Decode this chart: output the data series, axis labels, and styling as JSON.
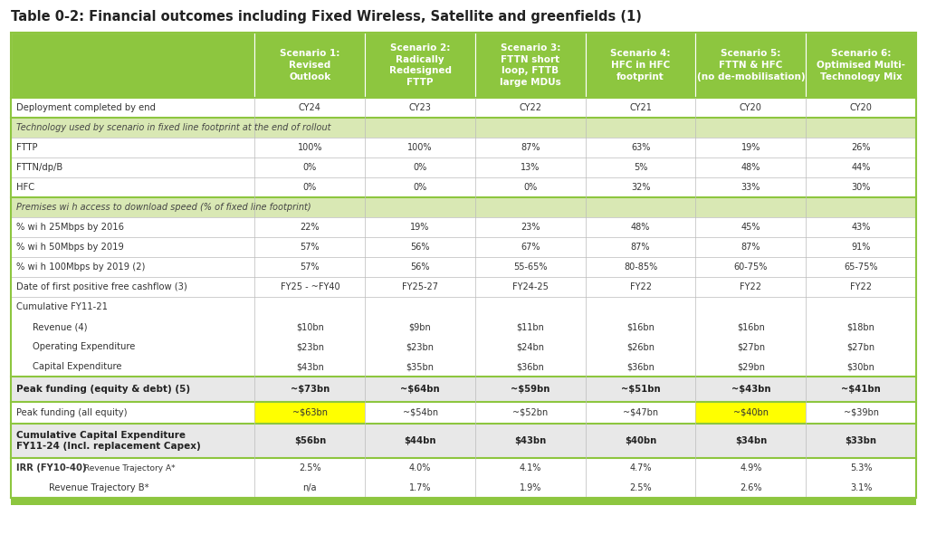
{
  "title": "Table 0-2: Financial outcomes including Fixed Wireless, Satellite and greenfields (1)",
  "header_bg": "#8dc63f",
  "header_text_color": "#ffffff",
  "section_bg": "#d9e8b4",
  "row_bg_white": "#ffffff",
  "bold_row_bg": "#e8e8e8",
  "highlight_row_bg": "#ffffff",
  "yellow_highlight": "#ffff00",
  "border_color": "#8dc63f",
  "light_border": "#bbbbbb",
  "col_headers": [
    "",
    "Scenario 1:\nRevised\nOutlook",
    "Scenario 2:\nRadically\nRedesigned\nFTTP",
    "Scenario 3:\nFTTN short\nloop, FTTB\nlarge MDUs",
    "Scenario 4:\nHFC in HFC\nfootprint",
    "Scenario 5:\nFTTN & HFC\n(no de-mobilisation)",
    "Scenario 6:\nOptimised Multi-\nTechnology Mix"
  ],
  "col_widths_rel": [
    2.7,
    1.22,
    1.22,
    1.22,
    1.22,
    1.22,
    1.22
  ],
  "rows": [
    {
      "label": "Deployment completed by end",
      "values": [
        "CY24",
        "CY23",
        "CY22",
        "CY21",
        "CY20",
        "CY20"
      ],
      "type": "normal",
      "bold": false,
      "indent": 0,
      "border_top": "green"
    },
    {
      "label": "Technology used by scenario in fixed line footprint at the end of rollout",
      "values": [
        "",
        "",
        "",
        "",
        "",
        ""
      ],
      "type": "section",
      "bold": false,
      "indent": 0,
      "border_top": "green"
    },
    {
      "label": "FTTP",
      "values": [
        "100%",
        "100%",
        "87%",
        "63%",
        "19%",
        "26%"
      ],
      "type": "normal",
      "bold": false,
      "indent": 0,
      "border_top": "light"
    },
    {
      "label": "FTTN/dp/B",
      "values": [
        "0%",
        "0%",
        "13%",
        "5%",
        "48%",
        "44%"
      ],
      "type": "normal",
      "bold": false,
      "indent": 0,
      "border_top": "light"
    },
    {
      "label": "HFC",
      "values": [
        "0%",
        "0%",
        "0%",
        "32%",
        "33%",
        "30%"
      ],
      "type": "normal",
      "bold": false,
      "indent": 0,
      "border_top": "light"
    },
    {
      "label": "Premises wi h access to download speed (% of fixed line footprint)",
      "values": [
        "",
        "",
        "",
        "",
        "",
        ""
      ],
      "type": "section",
      "bold": false,
      "indent": 0,
      "border_top": "green"
    },
    {
      "label": "% wi h 25Mbps by 2016",
      "values": [
        "22%",
        "19%",
        "23%",
        "48%",
        "45%",
        "43%"
      ],
      "type": "normal",
      "bold": false,
      "indent": 0,
      "border_top": "light"
    },
    {
      "label": "% wi h 50Mbps by 2019",
      "values": [
        "57%",
        "56%",
        "67%",
        "87%",
        "87%",
        "91%"
      ],
      "type": "normal",
      "bold": false,
      "indent": 0,
      "border_top": "light"
    },
    {
      "label": "% wi h 100Mbps by 2019 (2)",
      "values": [
        "57%",
        "56%",
        "55-65%",
        "80-85%",
        "60-75%",
        "65-75%"
      ],
      "type": "normal",
      "bold": false,
      "indent": 0,
      "border_top": "light"
    },
    {
      "label": "Date of first positive free cashflow (3)",
      "values": [
        "FY25 - ~FY40",
        "FY25-27",
        "FY24-25",
        "FY22",
        "FY22",
        "FY22"
      ],
      "type": "normal",
      "bold": false,
      "indent": 0,
      "border_top": "light"
    },
    {
      "label": "Cumulative FY11-21",
      "values": [
        "",
        "",
        "",
        "",
        "",
        ""
      ],
      "type": "label_only",
      "bold": false,
      "indent": 0,
      "border_top": "light"
    },
    {
      "label": "Revenue (4)",
      "values": [
        "$10bn",
        "$9bn",
        "$11bn",
        "$16bn",
        "$16bn",
        "$18bn"
      ],
      "type": "normal",
      "bold": false,
      "indent": 1,
      "border_top": "none"
    },
    {
      "label": "Operating Expenditure",
      "values": [
        "$23bn",
        "$23bn",
        "$24bn",
        "$26bn",
        "$27bn",
        "$27bn"
      ],
      "type": "normal",
      "bold": false,
      "indent": 1,
      "border_top": "none"
    },
    {
      "label": "Capital Expenditure",
      "values": [
        "$43bn",
        "$35bn",
        "$36bn",
        "$36bn",
        "$29bn",
        "$30bn"
      ],
      "type": "normal",
      "bold": false,
      "indent": 1,
      "border_top": "none"
    },
    {
      "label": "Peak funding (equity & debt) (5)",
      "values": [
        "~$73bn",
        "~$64bn",
        "~$59bn",
        "~$51bn",
        "~$43bn",
        "~$41bn"
      ],
      "type": "bold_row",
      "bold": true,
      "indent": 0,
      "border_top": "green"
    },
    {
      "label": "Peak funding (all equity)",
      "values": [
        "~$63bn",
        "~$54bn",
        "~$52bn",
        "~$47bn",
        "~$40bn",
        "~$39bn"
      ],
      "type": "highlight_row",
      "bold": false,
      "indent": 0,
      "highlight_cols": [
        1,
        5
      ],
      "border_top": "green"
    },
    {
      "label": "Cumulative Capital Expenditure\nFY11-24 (Incl. replacement Capex)",
      "values": [
        "$56bn",
        "$44bn",
        "$43bn",
        "$40bn",
        "$34bn",
        "$33bn"
      ],
      "type": "bold_row",
      "bold": true,
      "indent": 0,
      "border_top": "green",
      "multiline": true
    },
    {
      "label": "IRR (FY10-40)  Revenue Trajectory A*",
      "values": [
        "2.5%",
        "4.0%",
        "4.1%",
        "4.7%",
        "4.9%",
        "5.3%"
      ],
      "type": "irr_row",
      "bold": false,
      "indent": 0,
      "border_top": "green"
    },
    {
      "label": "Revenue Trajectory B*",
      "values": [
        "n/a",
        "1.7%",
        "1.9%",
        "2.5%",
        "2.6%",
        "3.1%"
      ],
      "type": "normal",
      "bold": false,
      "indent": 2,
      "border_top": "none"
    }
  ]
}
